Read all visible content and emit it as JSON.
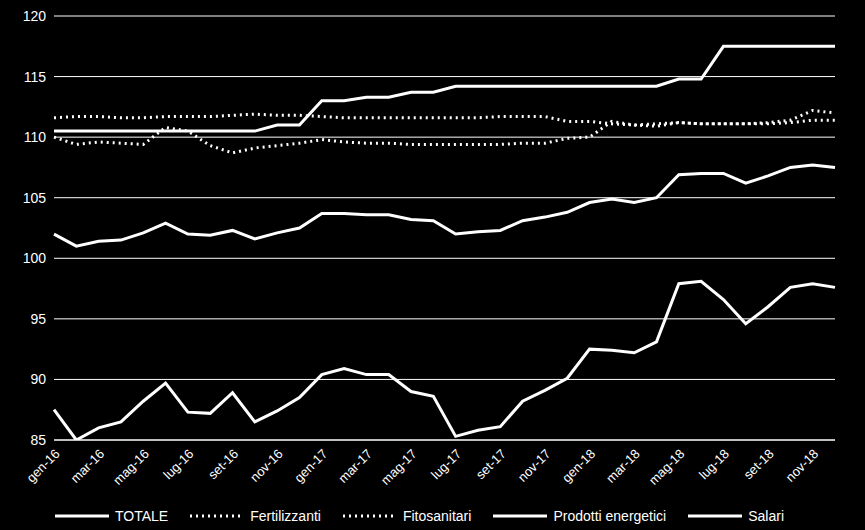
{
  "chart_data": {
    "type": "line",
    "categories": [
      "gen-16",
      null,
      "mar-16",
      null,
      "mag-16",
      null,
      "lug-16",
      null,
      "set-16",
      null,
      "nov-16",
      null,
      "gen-17",
      null,
      "mar-17",
      null,
      "mag-17",
      null,
      "lug-17",
      null,
      "set-17",
      null,
      "nov-17",
      null,
      "gen-18",
      null,
      "mar-18",
      null,
      "mag-18",
      null,
      "lug-18",
      null,
      "set-18",
      null,
      "nov-18",
      null
    ],
    "series": [
      {
        "name": "TOTALE",
        "color": "#ffffff",
        "line_style": "solid",
        "values": [
          102,
          101,
          101.4,
          101.5,
          102.1,
          102.9,
          102,
          101.9,
          102.3,
          101.6,
          102.1,
          102.5,
          103.7,
          103.7,
          103.6,
          103.6,
          103.2,
          103.1,
          102,
          102.2,
          102.3,
          103.1,
          103.4,
          103.8,
          104.6,
          104.9,
          104.6,
          105,
          106.9,
          107,
          107,
          106.2,
          106.8,
          107.5,
          107.7,
          107.5
        ]
      },
      {
        "name": "Fertilizzanti",
        "color": "#ffffff",
        "line_style": "dotted",
        "values": [
          110,
          109.4,
          109.6,
          109.5,
          109.4,
          110.8,
          110.5,
          109.3,
          108.7,
          109.1,
          109.3,
          109.5,
          109.8,
          109.6,
          109.5,
          109.5,
          109.4,
          109.4,
          109.4,
          109.4,
          109.4,
          109.5,
          109.5,
          109.9,
          110,
          111.3,
          111,
          110.9,
          111.2,
          111.1,
          111.1,
          111.1,
          111.2,
          111.4,
          112.2,
          112
        ]
      },
      {
        "name": "Fitosanitari",
        "color": "#ffffff",
        "line_style": "dotted",
        "values": [
          111.6,
          111.7,
          111.7,
          111.6,
          111.6,
          111.7,
          111.7,
          111.7,
          111.8,
          111.9,
          111.8,
          111.8,
          111.7,
          111.6,
          111.6,
          111.6,
          111.6,
          111.6,
          111.6,
          111.6,
          111.7,
          111.7,
          111.7,
          111.3,
          111.3,
          111.1,
          111,
          111.1,
          111.2,
          111.1,
          111.1,
          111.1,
          111.1,
          111.2,
          111.4,
          111.4
        ]
      },
      {
        "name": "Prodotti energetici",
        "color": "#ffffff",
        "line_style": "solid",
        "values": [
          87.5,
          85,
          86,
          86.5,
          88.2,
          89.7,
          87.3,
          87.2,
          88.9,
          86.5,
          87.4,
          88.5,
          90.4,
          90.9,
          90.4,
          90.4,
          89,
          88.6,
          85.3,
          85.8,
          86.1,
          88.2,
          89.1,
          90.1,
          92.5,
          92.4,
          92.2,
          93.1,
          97.9,
          98.1,
          96.6,
          94.6,
          96,
          97.6,
          97.9,
          97.6
        ]
      },
      {
        "name": "Salari",
        "color": "#ffffff",
        "line_style": "solid",
        "values": [
          110.5,
          110.5,
          110.5,
          110.5,
          110.5,
          110.5,
          110.5,
          110.5,
          110.5,
          110.5,
          111,
          111,
          113,
          113,
          113.3,
          113.3,
          113.7,
          113.7,
          114.2,
          114.2,
          114.2,
          114.2,
          114.2,
          114.2,
          114.2,
          114.2,
          114.2,
          114.2,
          114.8,
          114.8,
          117.5,
          117.5,
          117.5,
          117.5,
          117.5,
          117.5
        ]
      }
    ],
    "ylim": [
      85,
      120
    ],
    "yticks": [
      85,
      90,
      95,
      100,
      105,
      110,
      115,
      120
    ],
    "grid": true,
    "legend": "bottom"
  }
}
